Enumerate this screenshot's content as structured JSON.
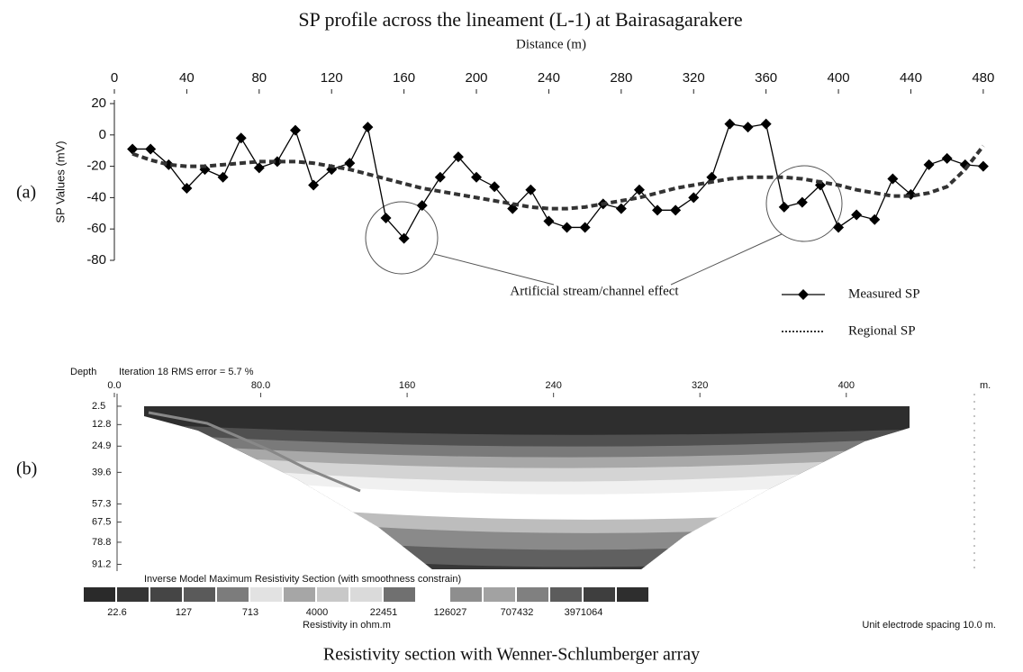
{
  "chart_data": [
    {
      "type": "line",
      "label": "(a)",
      "title": "SP profile across the lineament (L-1) at Bairasagarakere",
      "x_label": "Distance (m)",
      "y_label": "SP Values (mV)",
      "annotation": "Artificial stream/channel effect",
      "x": [
        10,
        20,
        30,
        40,
        50,
        60,
        70,
        80,
        90,
        100,
        110,
        120,
        130,
        140,
        150,
        160,
        170,
        180,
        190,
        200,
        210,
        220,
        230,
        240,
        250,
        260,
        270,
        280,
        290,
        300,
        310,
        320,
        330,
        340,
        350,
        360,
        370,
        380,
        390,
        400,
        410,
        420,
        430,
        440,
        450,
        460,
        470,
        480
      ],
      "series": [
        {
          "name": "Measured SP",
          "color": "#000000",
          "style": "solid",
          "marker": "diamond",
          "values": [
            -9,
            -9,
            -19,
            -34,
            -22,
            -27,
            -2,
            -21,
            -17,
            3,
            -32,
            -22,
            -18,
            5,
            -53,
            -66,
            -45,
            -27,
            -14,
            -27,
            -33,
            -47,
            -35,
            -55,
            -59,
            -59,
            -44,
            -47,
            -35,
            -48,
            -48,
            -40,
            -27,
            7,
            5,
            7,
            -46,
            -43,
            -32,
            -59,
            -51,
            -54,
            -28,
            -38,
            -19,
            -15,
            -19,
            -20
          ]
        },
        {
          "name": "Regional SP",
          "color": "#333333",
          "style": "dashed",
          "values": [
            -12,
            -16,
            -19,
            -20,
            -20,
            -19,
            -18,
            -17,
            -17,
            -17,
            -18,
            -20,
            -22,
            -25,
            -28,
            -31,
            -34,
            -36,
            -38,
            -40,
            -42,
            -44,
            -46,
            -47,
            -47,
            -46,
            -44,
            -42,
            -40,
            -37,
            -34,
            -32,
            -30,
            -28,
            -27,
            -27,
            -27,
            -28,
            -30,
            -32,
            -35,
            -37,
            -39,
            -39,
            -37,
            -33,
            -22,
            -7
          ]
        }
      ],
      "xlim": [
        0,
        493
      ],
      "xticks": [
        0,
        40,
        80,
        120,
        160,
        200,
        240,
        280,
        320,
        360,
        400,
        440,
        480
      ],
      "ylim": [
        -80,
        20
      ],
      "yticks": [
        20,
        0,
        -20,
        -40,
        -60,
        -80
      ]
    },
    {
      "type": "section",
      "label": "(b)",
      "y_label": "Depth",
      "subtitle": "Iteration 18 RMS error = 5.7 %",
      "x_unit": "m.",
      "xlim": [
        0,
        470
      ],
      "xticks": [
        {
          "value": 0,
          "label": "0.0"
        },
        {
          "value": 80,
          "label": "80.0"
        },
        160,
        240,
        320,
        400
      ],
      "ylim": [
        0,
        95
      ],
      "yticks": [
        2.5,
        12.8,
        24.9,
        39.6,
        57.3,
        67.5,
        78.8,
        91.2
      ],
      "legend_title": "Inverse Model Maximum Resistivity Section (with smoothness constrain)",
      "colors": [
        "#2a2a2a",
        "#353535",
        "#454545",
        "#5a5a5a",
        "#7c7c7c",
        "#e2e2e2",
        "#a6a6a6",
        "#c8c8c8",
        "#dadada",
        "#707070",
        "#ffffff",
        "#8e8e8e",
        "#a2a2a2",
        "#808080",
        "#5c5c5c",
        "#3e3e3e",
        "#2e2e2e"
      ],
      "scale_values": [
        22.6,
        127,
        713,
        4000,
        22451,
        126027,
        707432,
        3971064
      ],
      "scale_label": "Resistivity in ohm.m",
      "note": "Unit electrode spacing 10.0 m.",
      "caption": "Resistivity section with Wenner-Schlumberger array"
    }
  ]
}
